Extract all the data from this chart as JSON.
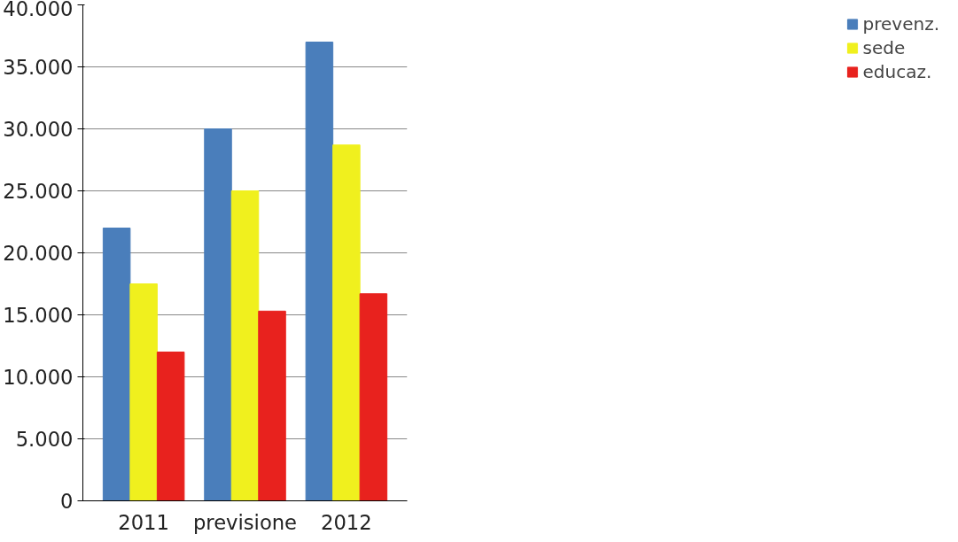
{
  "chart_data": {
    "type": "bar",
    "categories": [
      "2011",
      "previsione",
      "2012"
    ],
    "series": [
      {
        "name": "prevenz.",
        "color": "#4a7ebb",
        "values": [
          22000,
          30000,
          37000
        ]
      },
      {
        "name": "sede",
        "color": "#f0f01e",
        "values": [
          17500,
          25000,
          28700
        ]
      },
      {
        "name": "educaz.",
        "color": "#e8221e",
        "values": [
          12000,
          15300,
          16700
        ]
      }
    ],
    "ylim": [
      0,
      40000
    ],
    "yticks": [
      {
        "value": 0,
        "label": "0"
      },
      {
        "value": 5000,
        "label": "5.000"
      },
      {
        "value": 10000,
        "label": "10.000"
      },
      {
        "value": 15000,
        "label": "15.000"
      },
      {
        "value": 20000,
        "label": "20.000"
      },
      {
        "value": 25000,
        "label": "25.000"
      },
      {
        "value": 30000,
        "label": "30.000"
      },
      {
        "value": 35000,
        "label": "35.000"
      },
      {
        "value": 40000,
        "label": "40.000"
      }
    ],
    "grid": "y",
    "legend": "right"
  }
}
